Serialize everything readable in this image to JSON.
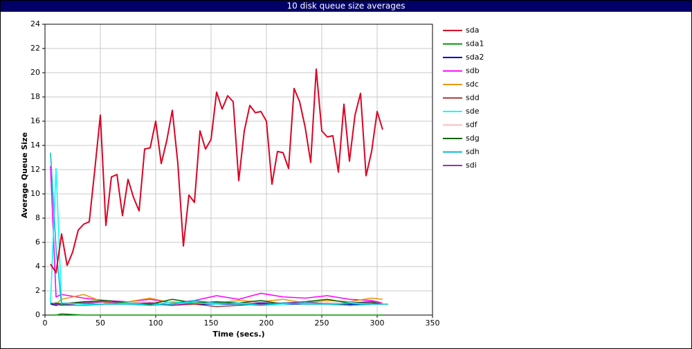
{
  "chart_data": {
    "type": "line",
    "title": "10 disk queue size averages",
    "x_label": "Time (secs.)",
    "y_label": "Average Queue Size",
    "xlim": [
      0,
      350
    ],
    "xticks": [
      0,
      50,
      100,
      150,
      200,
      250,
      300,
      350
    ],
    "ylim": [
      0,
      24
    ],
    "yticks": [
      0,
      2,
      4,
      6,
      8,
      10,
      12,
      14,
      16,
      18,
      20,
      22,
      24
    ],
    "grid": true,
    "legend": "right",
    "series": [
      {
        "name": "sdb",
        "color": "#ff00ff",
        "x": [
          5,
          10,
          15,
          35,
          55,
          75,
          95,
          115,
          135,
          155,
          175,
          195,
          215,
          235,
          255,
          275,
          295,
          305
        ],
        "values": [
          12.3,
          1.5,
          1.7,
          1.4,
          1.2,
          1.1,
          1.3,
          1.0,
          1.2,
          1.6,
          1.3,
          1.8,
          1.5,
          1.4,
          1.6,
          1.3,
          1.2,
          1.0
        ]
      },
      {
        "name": "sdc",
        "color": "#e69900",
        "x": [
          5,
          10,
          15,
          35,
          55,
          75,
          95,
          115,
          135,
          155,
          175,
          195,
          215,
          235,
          255,
          275,
          295,
          305
        ],
        "values": [
          1.0,
          0.9,
          1.3,
          1.7,
          1.0,
          1.1,
          1.4,
          1.0,
          1.1,
          1.0,
          1.2,
          1.1,
          1.3,
          1.0,
          1.2,
          1.1,
          1.4,
          1.3
        ]
      },
      {
        "name": "sda2",
        "color": "#0000cc",
        "x": [
          5,
          10,
          15,
          35,
          55,
          75,
          95,
          115,
          135,
          155,
          175,
          195,
          215,
          235,
          255,
          275,
          295,
          305
        ],
        "values": [
          0.9,
          0.8,
          0.9,
          1.0,
          0.9,
          0.9,
          1.0,
          0.9,
          0.9,
          0.9,
          0.9,
          1.0,
          0.9,
          0.9,
          1.0,
          0.9,
          0.9,
          0.9
        ]
      },
      {
        "name": "sdd",
        "color": "#aa3333",
        "x": [
          5,
          10,
          15,
          35,
          55,
          75,
          95,
          115,
          135,
          155,
          175,
          195,
          215,
          235,
          255,
          275,
          295,
          305
        ],
        "values": [
          1.0,
          0.9,
          0.8,
          1.0,
          0.9,
          1.0,
          0.9,
          0.8,
          0.9,
          0.7,
          0.8,
          0.9,
          1.0,
          0.9,
          1.0,
          0.8,
          0.9,
          0.9
        ]
      },
      {
        "name": "sdf",
        "color": "#ffbbbb",
        "x": [
          5,
          10,
          15,
          35,
          55,
          75,
          95,
          115,
          135,
          155,
          175,
          195,
          215,
          235,
          255,
          275,
          295,
          305
        ],
        "values": [
          1.0,
          0.9,
          1.0,
          1.1,
          0.9,
          1.0,
          1.1,
          0.9,
          1.0,
          1.0,
          0.9,
          1.1,
          1.0,
          0.9,
          1.0,
          1.0,
          0.9,
          1.0
        ]
      },
      {
        "name": "sdg",
        "color": "#006600",
        "x": [
          5,
          10,
          15,
          35,
          55,
          75,
          95,
          115,
          135,
          155,
          175,
          195,
          215,
          235,
          255,
          275,
          295,
          305
        ],
        "values": [
          0.9,
          1.0,
          0.9,
          1.1,
          1.2,
          1.0,
          0.9,
          1.3,
          1.0,
          1.1,
          1.0,
          1.2,
          0.9,
          1.1,
          1.3,
          1.0,
          1.1,
          0.9
        ]
      },
      {
        "name": "sdi",
        "color": "#9933aa",
        "x": [
          5,
          10,
          15,
          35,
          55,
          75,
          95,
          115,
          135,
          155,
          175,
          195,
          215,
          235,
          255,
          275,
          295,
          305
        ],
        "values": [
          1.0,
          0.9,
          0.8,
          1.0,
          1.1,
          0.9,
          1.0,
          0.8,
          1.0,
          0.9,
          1.0,
          0.9,
          1.0,
          1.1,
          0.9,
          1.0,
          1.0,
          0.9
        ]
      },
      {
        "name": "sda1",
        "color": "#009900",
        "x": [
          5,
          10,
          15,
          35,
          55,
          75,
          95,
          115,
          135,
          155,
          175,
          195,
          215,
          235,
          255,
          275,
          295,
          305
        ],
        "values": [
          0,
          0,
          0.1,
          0,
          0,
          0,
          0,
          0,
          0,
          0,
          0,
          0,
          0,
          0,
          0,
          0,
          0,
          0
        ]
      },
      {
        "name": "sde",
        "color": "#00ffff",
        "x": [
          5,
          10,
          15,
          35,
          55,
          75,
          95,
          115,
          135,
          155,
          175,
          195,
          215,
          235,
          255,
          275,
          295,
          305
        ],
        "values": [
          1.0,
          12.1,
          1.0,
          0.9,
          0.9,
          1.0,
          0.8,
          1.1,
          1.0,
          0.9,
          1.0,
          0.8,
          0.9,
          1.0,
          0.9,
          1.0,
          0.9,
          0.9
        ]
      },
      {
        "name": "sdh",
        "color": "#00bbcc",
        "x": [
          5,
          10,
          15,
          35,
          55,
          75,
          95,
          115,
          135,
          155,
          175,
          195,
          215,
          235,
          255,
          275,
          295,
          310
        ],
        "values": [
          13.4,
          5.5,
          0.8,
          0.8,
          0.9,
          0.9,
          0.8,
          0.9,
          1.2,
          1.0,
          0.9,
          0.8,
          1.0,
          0.9,
          0.9,
          0.8,
          0.9,
          0.9
        ]
      },
      {
        "name": "sda",
        "color": "#dd0022",
        "x": [
          5,
          10,
          15,
          20,
          25,
          30,
          35,
          40,
          45,
          50,
          55,
          60,
          65,
          70,
          75,
          80,
          85,
          90,
          95,
          100,
          105,
          110,
          115,
          120,
          125,
          130,
          135,
          140,
          145,
          150,
          155,
          160,
          165,
          170,
          175,
          180,
          185,
          190,
          195,
          200,
          205,
          210,
          215,
          220,
          225,
          230,
          235,
          240,
          245,
          250,
          255,
          260,
          265,
          270,
          275,
          280,
          285,
          290,
          295,
          300,
          305
        ],
        "values": [
          4.2,
          3.5,
          6.7,
          4.1,
          5.2,
          7.0,
          7.5,
          7.7,
          12.0,
          16.5,
          7.4,
          11.4,
          11.6,
          8.2,
          11.2,
          9.7,
          8.6,
          13.7,
          13.8,
          16.0,
          12.5,
          14.4,
          16.9,
          12.5,
          5.7,
          9.9,
          9.3,
          15.2,
          13.7,
          14.5,
          18.4,
          17.0,
          18.1,
          17.6,
          11.1,
          15.2,
          17.3,
          16.7,
          16.8,
          16.0,
          10.8,
          13.5,
          13.4,
          12.1,
          18.7,
          17.6,
          15.5,
          12.6,
          20.3,
          15.2,
          14.7,
          14.8,
          11.8,
          17.4,
          12.7,
          16.5,
          18.3,
          11.5,
          13.5,
          16.8,
          15.3
        ]
      }
    ],
    "legend_order": [
      "sda",
      "sda1",
      "sda2",
      "sdb",
      "sdc",
      "sdd",
      "sde",
      "sdf",
      "sdg",
      "sdh",
      "sdi"
    ]
  }
}
